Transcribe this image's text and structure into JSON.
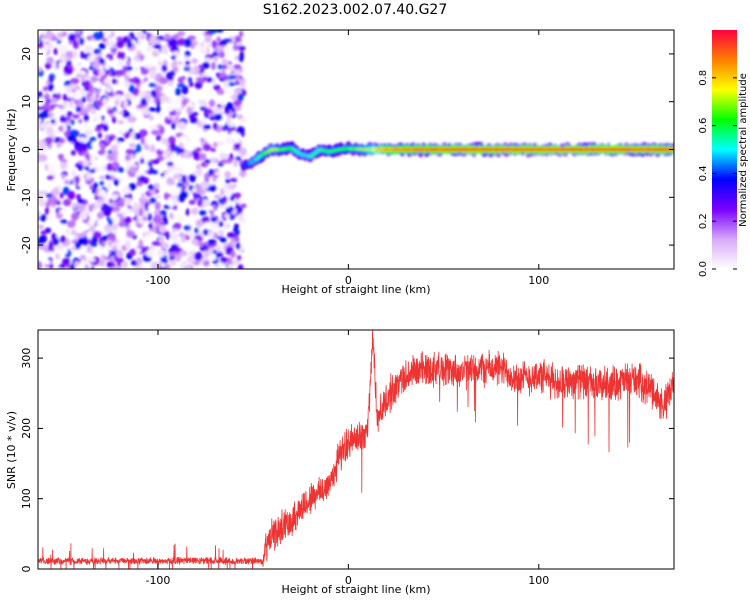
{
  "title": "S162.2023.002.07.40.G27",
  "chart_data": [
    {
      "type": "heatmap",
      "xlabel": "Height of straight line (km)",
      "ylabel": "Frequency (Hz)",
      "xlim": [
        -163,
        171
      ],
      "ylim": [
        -25,
        25
      ],
      "x_ticks": [
        -100,
        0,
        100
      ],
      "x_tick_labels": [
        "-100",
        "0",
        "100"
      ],
      "y_ticks": [
        -20,
        -10,
        0,
        10,
        20
      ],
      "y_tick_labels": [
        "-20",
        "-10",
        "0",
        "10",
        "20"
      ],
      "colorbar": {
        "label": "Normalized spectral amplitude",
        "range": [
          0,
          1
        ],
        "ticks": [
          0,
          0.2,
          0.4,
          0.6,
          0.8
        ],
        "tick_labels": [
          "0.0",
          "0.2",
          "0.4",
          "0.6",
          "0.8"
        ],
        "colors": [
          "#ffffff",
          "#d7a8f8",
          "#7a00ff",
          "#0000ff",
          "#00ffff",
          "#00ff00",
          "#ffff00",
          "#ff7f00",
          "#ff0040"
        ]
      },
      "noise_region_x": [
        -163,
        -55
      ],
      "signal_track": {
        "x": [
          -55,
          -50,
          -45,
          -40,
          -35,
          -30,
          -25,
          -20,
          -15,
          -10,
          -5,
          0,
          10,
          20,
          40,
          60,
          80,
          100,
          120,
          140,
          160,
          171
        ],
        "freq": [
          -3.5,
          -2.5,
          -1.0,
          0.0,
          0.0,
          0.3,
          -1.0,
          -1.5,
          0.0,
          -0.5,
          0.0,
          0.2,
          0.0,
          0.0,
          0.0,
          0.0,
          0.0,
          0.0,
          0.0,
          0.0,
          0.0,
          0.0
        ],
        "amplitude": [
          0.35,
          0.45,
          0.6,
          0.7,
          0.65,
          0.6,
          0.5,
          0.5,
          0.55,
          0.6,
          0.6,
          0.65,
          0.7,
          0.85,
          0.9,
          0.92,
          0.92,
          0.92,
          0.92,
          0.92,
          0.92,
          0.92
        ]
      }
    },
    {
      "type": "line",
      "xlabel": "Height of straight line (km)",
      "ylabel": "SNR (10 * v/v)",
      "xlim": [
        -163,
        171
      ],
      "ylim": [
        0,
        340
      ],
      "x_ticks": [
        -100,
        0,
        100
      ],
      "x_tick_labels": [
        "-100",
        "0",
        "100"
      ],
      "y_ticks": [
        0,
        100,
        200,
        300
      ],
      "y_tick_labels": [
        "0",
        "100",
        "200",
        "300"
      ],
      "color": "#ee3333",
      "series": [
        {
          "x": [
            -163,
            -140,
            -120,
            -100,
            -80,
            -60,
            -45,
            -42,
            -35,
            -30,
            -25,
            -20,
            -15,
            -10,
            -5,
            0,
            5,
            10,
            13,
            15,
            20,
            25,
            30,
            40,
            50,
            60,
            70,
            80,
            90,
            100,
            110,
            120,
            130,
            140,
            150,
            160,
            165,
            171
          ],
          "y": [
            12,
            11,
            12,
            11,
            12,
            11,
            12,
            40,
            60,
            70,
            85,
            100,
            110,
            120,
            160,
            180,
            185,
            200,
            330,
            215,
            240,
            260,
            275,
            285,
            285,
            280,
            285,
            285,
            270,
            275,
            265,
            270,
            260,
            265,
            270,
            255,
            230,
            260
          ]
        }
      ]
    }
  ]
}
